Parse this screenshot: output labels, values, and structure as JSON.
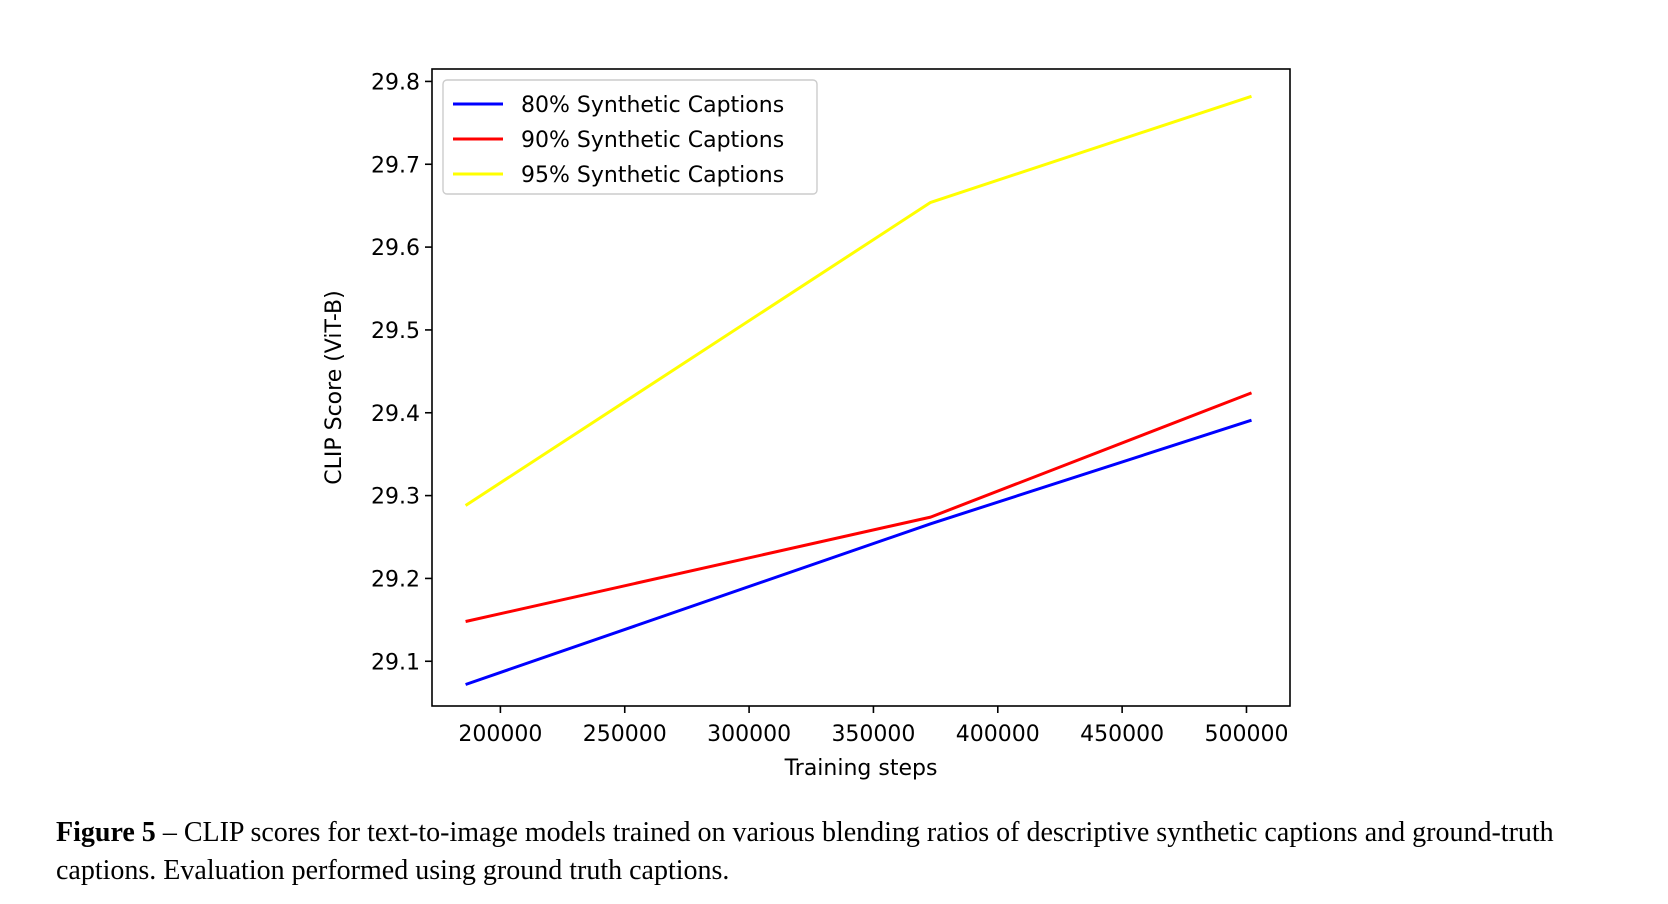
{
  "chart_data": {
    "type": "line",
    "title": "",
    "xlabel": "Training steps",
    "ylabel": "CLIP Score (ViT-B)",
    "xlim": [
      172500,
      517500
    ],
    "ylim": [
      29.046,
      29.815
    ],
    "xticks": [
      200000,
      250000,
      300000,
      350000,
      400000,
      450000,
      500000
    ],
    "xtick_labels": [
      "200000",
      "250000",
      "300000",
      "350000",
      "400000",
      "450000",
      "500000"
    ],
    "yticks": [
      29.1,
      29.2,
      29.3,
      29.4,
      29.5,
      29.6,
      29.7,
      29.8
    ],
    "ytick_labels": [
      "29.1",
      "29.2",
      "29.3",
      "29.4",
      "29.5",
      "29.6",
      "29.7",
      "29.8"
    ],
    "grid": false,
    "legend_position": "upper left",
    "series": [
      {
        "name": "80% Synthetic Captions",
        "color": "#0000ff",
        "x": [
          186000,
          373000,
          502000
        ],
        "y": [
          29.072,
          29.266,
          29.391
        ]
      },
      {
        "name": "90% Synthetic Captions",
        "color": "#ff0000",
        "x": [
          186000,
          373000,
          502000
        ],
        "y": [
          29.148,
          29.274,
          29.424
        ]
      },
      {
        "name": "95% Synthetic Captions",
        "color": "#ffff00",
        "x": [
          186000,
          373000,
          502000
        ],
        "y": [
          29.288,
          29.654,
          29.782
        ]
      }
    ]
  },
  "caption": {
    "label": "Figure 5",
    "text": " – CLIP scores for text-to-image models trained on various blending ratios of descriptive synthetic captions and ground-truth captions. Evaluation performed using ground truth captions."
  }
}
